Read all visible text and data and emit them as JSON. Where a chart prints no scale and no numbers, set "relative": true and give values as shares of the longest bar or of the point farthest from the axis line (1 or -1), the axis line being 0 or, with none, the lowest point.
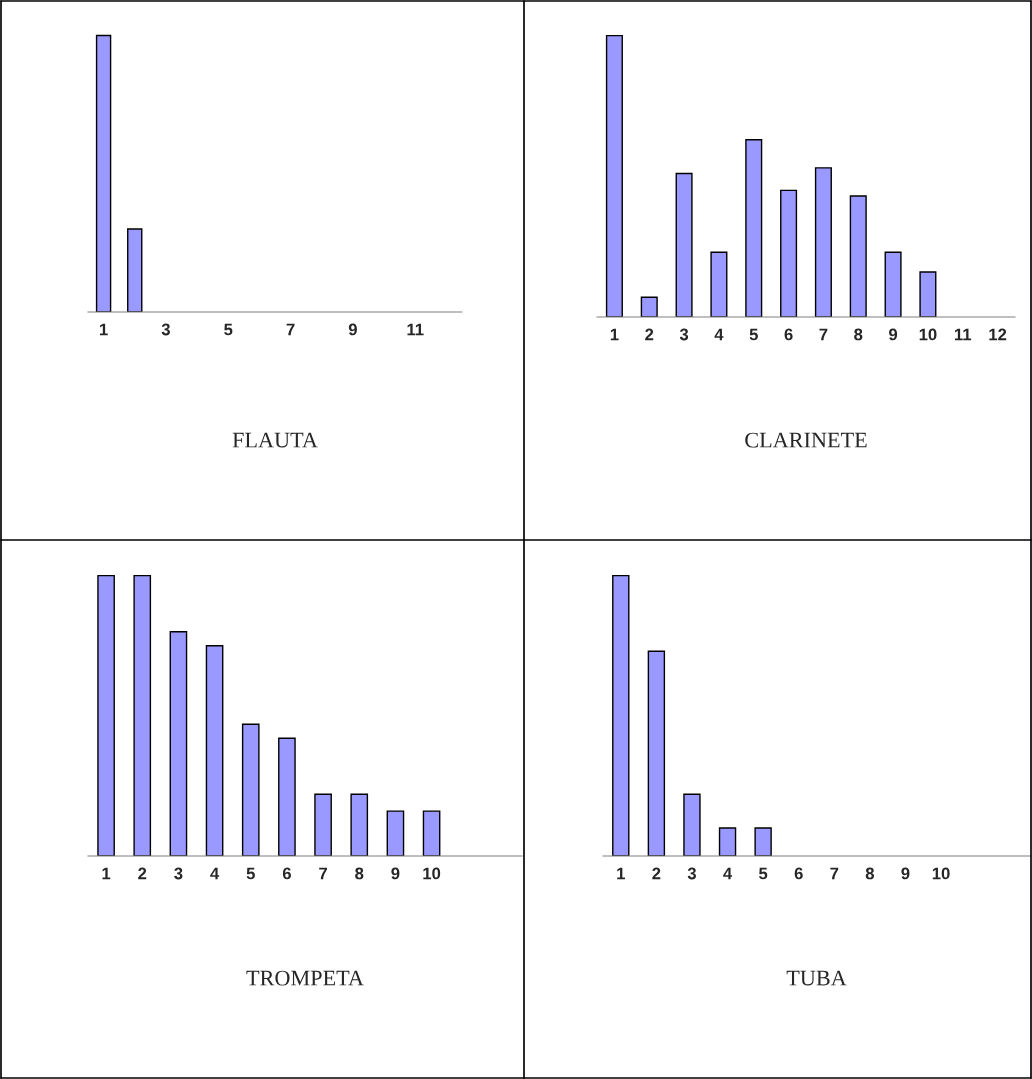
{
  "chart_data": [
    {
      "type": "bar",
      "title": "FLAUTA",
      "relative": true,
      "categories": [
        "1",
        null,
        "3",
        null,
        "5",
        null,
        "7",
        null,
        "9",
        null,
        "11",
        null
      ],
      "values": [
        1,
        0.3,
        null,
        null,
        null,
        null,
        null,
        null,
        null,
        null,
        null,
        null
      ],
      "color": "#9999ff",
      "grid": false,
      "legend": false
    },
    {
      "type": "bar",
      "title": "CLARINETE",
      "relative": true,
      "categories": [
        "1",
        "2",
        "3",
        "4",
        "5",
        "6",
        "7",
        "8",
        "9",
        "10",
        "11",
        "12"
      ],
      "values": [
        1,
        0.07,
        0.51,
        0.23,
        0.63,
        0.45,
        0.53,
        0.43,
        0.23,
        0.16,
        null,
        null
      ],
      "color": "#9999ff",
      "grid": false,
      "legend": false
    },
    {
      "type": "bar",
      "title": "TROMPETA",
      "relative": true,
      "categories": [
        "1",
        "2",
        "3",
        "4",
        "5",
        "6",
        "7",
        "8",
        "9",
        "10",
        null,
        null
      ],
      "values": [
        1,
        1,
        0.8,
        0.75,
        0.47,
        0.42,
        0.22,
        0.22,
        0.16,
        0.16,
        null,
        null
      ],
      "color": "#9999ff",
      "grid": false,
      "legend": false
    },
    {
      "type": "bar",
      "title": "TUBA",
      "relative": true,
      "categories": [
        "1",
        "2",
        "3",
        "4",
        "5",
        "6",
        "7",
        "8",
        "9",
        "10",
        null,
        null
      ],
      "values": [
        1,
        0.73,
        0.22,
        0.1,
        0.1,
        null,
        null,
        null,
        null,
        null,
        null,
        null
      ],
      "color": "#9999ff",
      "grid": false,
      "legend": false
    }
  ]
}
